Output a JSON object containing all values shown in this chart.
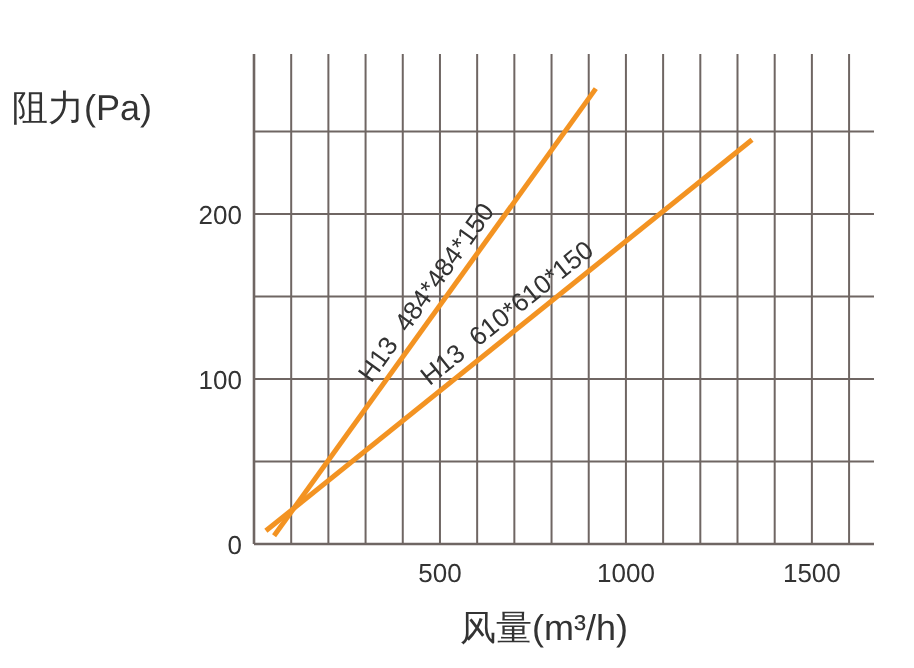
{
  "chart_data": {
    "type": "line",
    "xlabel": "风量(m³/h)",
    "ylabel": "阻力(Pa)",
    "xlim": [
      0,
      1667
    ],
    "ylim": [
      0,
      297
    ],
    "xticks": [
      {
        "value": 100,
        "label": null
      },
      {
        "value": 200,
        "label": null
      },
      {
        "value": 300,
        "label": null
      },
      {
        "value": 400,
        "label": null
      },
      500,
      {
        "value": 600,
        "label": null
      },
      {
        "value": 700,
        "label": null
      },
      {
        "value": 800,
        "label": null
      },
      {
        "value": 900,
        "label": null
      },
      1000,
      {
        "value": 1100,
        "label": null
      },
      {
        "value": 1200,
        "label": null
      },
      {
        "value": 1300,
        "label": null
      },
      {
        "value": 1400,
        "label": null
      },
      1500,
      {
        "value": 1600,
        "label": null
      }
    ],
    "yticks": [
      0,
      {
        "value": 50,
        "label": null
      },
      100,
      {
        "value": 150,
        "label": null
      },
      200,
      {
        "value": 250,
        "label": null
      }
    ],
    "grid": true,
    "marker": "none",
    "line_style": "solid",
    "series": [
      {
        "color": "#f39322",
        "x": [
          54,
          919
        ],
        "values": [
          5,
          276
        ]
      },
      {
        "color": "#f39322",
        "x": [
          32,
          1339
        ],
        "values": [
          8,
          245
        ]
      }
    ],
    "annotations": [
      "H13  484*484*150",
      "H13  610*610*150"
    ]
  }
}
